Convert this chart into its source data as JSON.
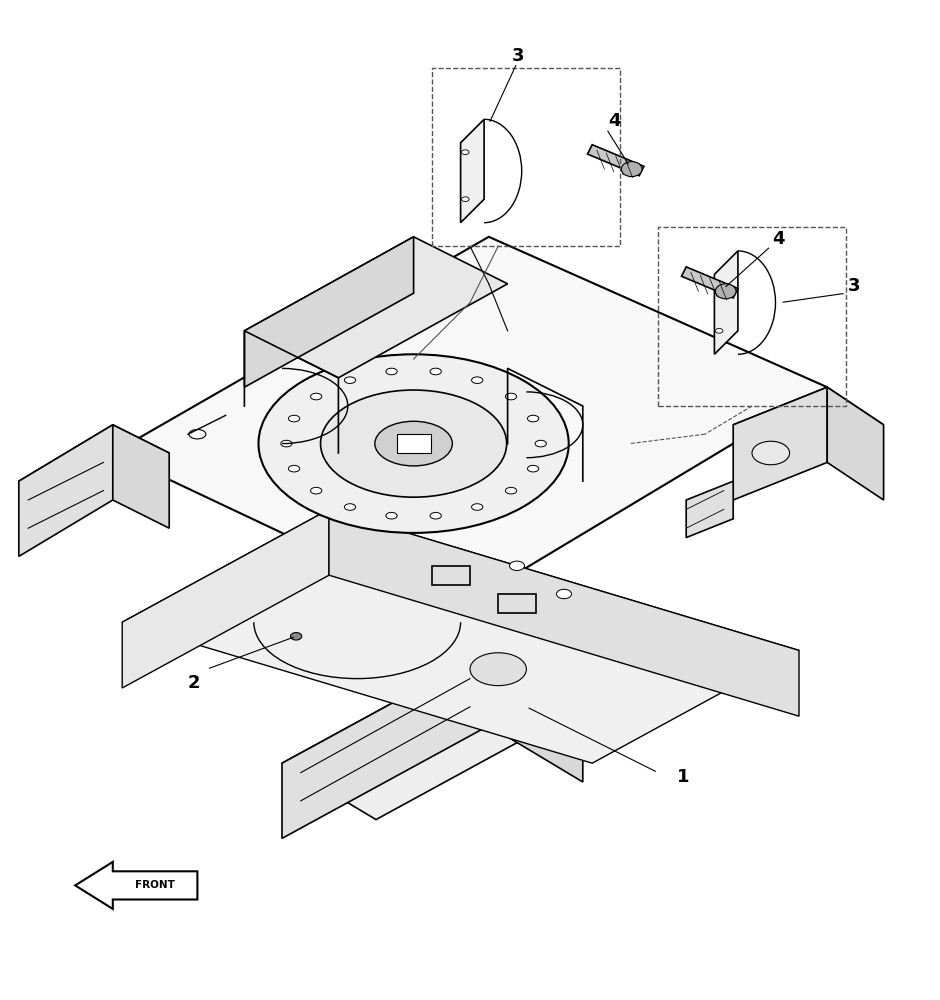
{
  "bg_color": "#ffffff",
  "line_color": "#000000",
  "label_color": "#000000",
  "fig_width": 9.4,
  "fig_height": 10.0,
  "dpi": 100,
  "front_arrow_text": "FRONT"
}
